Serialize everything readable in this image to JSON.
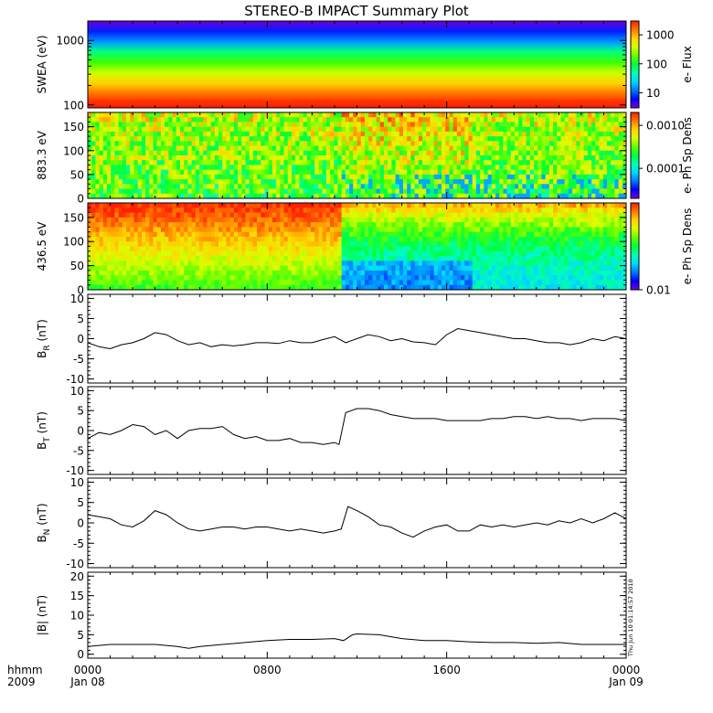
{
  "title": "STEREO-B IMPACT Summary Plot",
  "stamp": "Thu Jun 10 01:14:57 2010",
  "time_axis": {
    "prefix": [
      "hhmm",
      "2009"
    ],
    "start_hours": 0,
    "end_hours": 24,
    "ticks": [
      {
        "hours": 0,
        "label": "0000",
        "date": "Jan 08"
      },
      {
        "hours": 8,
        "label": "0800",
        "date": ""
      },
      {
        "hours": 16,
        "label": "1600",
        "date": ""
      },
      {
        "hours": 24,
        "label": "0000",
        "date": "Jan 09"
      }
    ]
  },
  "colorbar_colors": [
    "#7a00dc",
    "#0000ff",
    "#0078ff",
    "#00d8ff",
    "#00ffb4",
    "#00ff3c",
    "#64ff00",
    "#d8ff00",
    "#ffd400",
    "#ff7800",
    "#ff2000"
  ],
  "chart_data": [
    {
      "type": "heatmap",
      "ylabel": "SWEA (eV)",
      "yscale": "log",
      "ylim": [
        90,
        2000
      ],
      "yticks": [
        {
          "v": 100,
          "label": "100"
        },
        {
          "v": 1000,
          "label": "1000"
        }
      ],
      "zlabel": "e- Flux",
      "zscale": "log",
      "zlim": [
        3,
        3000
      ],
      "zticks": [
        {
          "v": 10,
          "label": "10"
        },
        {
          "v": 100,
          "label": "100"
        },
        {
          "v": 1000,
          "label": "1000"
        }
      ],
      "description_levels": {
        "energy": [
          100,
          200,
          500,
          1000,
          2000
        ],
        "flux": [
          3000,
          1000,
          150,
          10,
          3
        ]
      }
    },
    {
      "type": "heatmap",
      "ylabel": "883.3 eV",
      "ylim": [
        0,
        180
      ],
      "yticks": [
        {
          "v": 0,
          "label": "0"
        },
        {
          "v": 50,
          "label": "50"
        },
        {
          "v": 100,
          "label": "100"
        },
        {
          "v": 150,
          "label": "150"
        }
      ],
      "zlabel": "e- Ph Sp Dens",
      "zscale": "log",
      "zlim": [
        2e-05,
        0.002
      ],
      "zticks": [
        {
          "v": 0.0001,
          "label": "0.0001"
        },
        {
          "v": 0.001,
          "label": "0.0010"
        }
      ]
    },
    {
      "type": "heatmap",
      "ylabel": "436.5 eV",
      "ylim": [
        0,
        180
      ],
      "yticks": [
        {
          "v": 0,
          "label": "0"
        },
        {
          "v": 50,
          "label": "50"
        },
        {
          "v": 100,
          "label": "100"
        },
        {
          "v": 150,
          "label": "150"
        }
      ],
      "zlabel": "e- Ph Sp Dens",
      "zscale": "log",
      "zlim": [
        0.01,
        0.15
      ],
      "zticks": [
        {
          "v": 0.01,
          "label": "0.01"
        }
      ]
    },
    {
      "type": "line",
      "ylabel": "B",
      "ylabel_sub": "R",
      "ylabel_unit": " (nT)",
      "ylim": [
        -11,
        11
      ],
      "yticks": [
        {
          "v": -10,
          "label": "-10"
        },
        {
          "v": -5,
          "label": "-5"
        },
        {
          "v": 0,
          "label": "0"
        },
        {
          "v": 5,
          "label": "5"
        },
        {
          "v": 10,
          "label": "10"
        }
      ],
      "x": [
        0,
        0.5,
        1,
        1.5,
        2,
        2.5,
        3,
        3.5,
        4,
        4.5,
        5,
        5.5,
        6,
        6.5,
        7,
        7.5,
        8,
        8.5,
        9,
        9.5,
        10,
        10.5,
        11,
        11.5,
        12,
        12.5,
        13,
        13.5,
        14,
        14.5,
        15,
        15.5,
        16,
        16.5,
        17,
        17.5,
        18,
        18.5,
        19,
        19.5,
        20,
        20.5,
        21,
        21.5,
        22,
        22.5,
        23,
        23.5,
        24
      ],
      "y": [
        -1,
        -2,
        -2.5,
        -1.5,
        -1,
        0,
        1.5,
        1,
        -0.5,
        -1.5,
        -1,
        -2,
        -1.5,
        -1.8,
        -1.5,
        -1,
        -1,
        -1.2,
        -0.5,
        -1,
        -1,
        -0.2,
        0.5,
        -1,
        0,
        1,
        0.5,
        -0.5,
        0,
        -0.8,
        -1,
        -1.5,
        1,
        2.5,
        2,
        1.5,
        1,
        0.5,
        0,
        0,
        -0.5,
        -1,
        -1,
        -1.5,
        -1,
        0,
        -0.5,
        0.5,
        0
      ]
    },
    {
      "type": "line",
      "ylabel": "B",
      "ylabel_sub": "T",
      "ylabel_unit": " (nT)",
      "ylim": [
        -11,
        11
      ],
      "yticks": [
        {
          "v": -10,
          "label": "-10"
        },
        {
          "v": -5,
          "label": "-5"
        },
        {
          "v": 0,
          "label": "0"
        },
        {
          "v": 5,
          "label": "5"
        },
        {
          "v": 10,
          "label": "10"
        }
      ],
      "x": [
        0,
        0.5,
        1,
        1.5,
        2,
        2.5,
        3,
        3.5,
        4,
        4.5,
        5,
        5.5,
        6,
        6.5,
        7,
        7.5,
        8,
        8.5,
        9,
        9.5,
        10,
        10.5,
        11,
        11.2,
        11.5,
        12,
        12.5,
        13,
        13.5,
        14,
        14.5,
        15,
        15.5,
        16,
        16.5,
        17,
        17.5,
        18,
        18.5,
        19,
        19.5,
        20,
        20.5,
        21,
        21.5,
        22,
        22.5,
        23,
        23.5,
        24
      ],
      "y": [
        -2,
        -0.5,
        -1,
        0,
        1.5,
        1,
        -1,
        0,
        -2,
        0,
        0.5,
        0.5,
        1,
        -1,
        -2,
        -1.5,
        -2.5,
        -2.5,
        -2,
        -3,
        -3,
        -3.5,
        -3,
        -3.5,
        4.5,
        5.5,
        5.5,
        5,
        4,
        3.5,
        3,
        3,
        3,
        2.5,
        2.5,
        2.5,
        2.5,
        3,
        3,
        3.5,
        3.5,
        3,
        3.5,
        3,
        3,
        2.5,
        3,
        3,
        3,
        2.5
      ]
    },
    {
      "type": "line",
      "ylabel": "B",
      "ylabel_sub": "N",
      "ylabel_unit": " (nT)",
      "ylim": [
        -11,
        11
      ],
      "yticks": [
        {
          "v": -10,
          "label": "-10"
        },
        {
          "v": -5,
          "label": "-5"
        },
        {
          "v": 0,
          "label": "0"
        },
        {
          "v": 5,
          "label": "5"
        },
        {
          "v": 10,
          "label": "10"
        }
      ],
      "x": [
        0,
        0.5,
        1,
        1.5,
        2,
        2.5,
        3,
        3.5,
        4,
        4.5,
        5,
        5.5,
        6,
        6.5,
        7,
        7.5,
        8,
        8.5,
        9,
        9.5,
        10,
        10.5,
        11,
        11.3,
        11.6,
        12,
        12.5,
        13,
        13.5,
        14,
        14.5,
        15,
        15.5,
        16,
        16.5,
        17,
        17.5,
        18,
        18.5,
        19,
        19.5,
        20,
        20.5,
        21,
        21.5,
        22,
        22.5,
        23,
        23.5,
        24
      ],
      "y": [
        2,
        1.5,
        1,
        -0.5,
        -1,
        0.5,
        3,
        2,
        0,
        -1.5,
        -2,
        -1.5,
        -1,
        -1,
        -1.5,
        -1,
        -1,
        -1.5,
        -2,
        -1.5,
        -2,
        -2.5,
        -2,
        -1.5,
        4,
        3,
        1.5,
        -0.5,
        -1,
        -2.5,
        -3.5,
        -2,
        -1,
        -0.5,
        -2,
        -2,
        -0.5,
        -1,
        -0.5,
        -1,
        -0.5,
        0,
        -0.5,
        0.5,
        0,
        1,
        0,
        1,
        2.5,
        1
      ]
    },
    {
      "type": "line",
      "ylabel": "|B| (nT)",
      "ylim": [
        -1,
        21
      ],
      "yticks": [
        {
          "v": 0,
          "label": "0"
        },
        {
          "v": 5,
          "label": "5"
        },
        {
          "v": 10,
          "label": "10"
        },
        {
          "v": 15,
          "label": "15"
        },
        {
          "v": 20,
          "label": "20"
        }
      ],
      "x": [
        0,
        1,
        2,
        3,
        4,
        4.5,
        5,
        6,
        7,
        8,
        9,
        10,
        11,
        11.4,
        11.8,
        12,
        13,
        14,
        15,
        16,
        17,
        18,
        19,
        20,
        21,
        22,
        23,
        24
      ],
      "y": [
        2,
        2.5,
        2.5,
        2.5,
        2,
        1.5,
        2,
        2.5,
        3,
        3.5,
        3.8,
        3.8,
        4,
        3.5,
        5,
        5.2,
        5,
        4,
        3.5,
        3.5,
        3.2,
        3,
        3,
        2.8,
        3,
        2.5,
        2.5,
        2.5
      ]
    }
  ]
}
